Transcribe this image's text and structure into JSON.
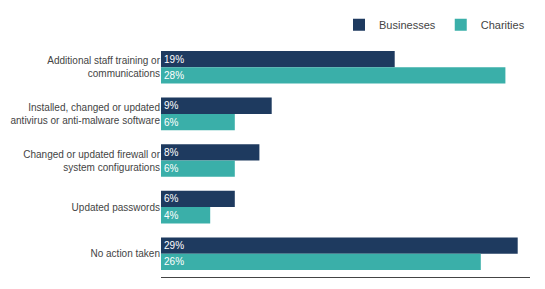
{
  "chart_data": {
    "type": "bar",
    "orientation": "horizontal",
    "categories": [
      "Additional staff training or\ncommunications",
      "Installed, changed or updated\nantivirus or anti-malware software",
      "Changed or updated firewall or\nsystem configurations",
      "Updated passwords",
      "No action taken"
    ],
    "series": [
      {
        "name": "Businesses",
        "color": "#1e3a5f",
        "values": [
          19,
          9,
          8,
          6,
          29
        ],
        "value_labels": [
          "19%",
          "9%",
          "8%",
          "6%",
          "29%"
        ]
      },
      {
        "name": "Charities",
        "color": "#3aafa9",
        "values": [
          28,
          6,
          6,
          4,
          26
        ],
        "value_labels": [
          "28%",
          "6%",
          "6%",
          "4%",
          "26%"
        ]
      }
    ],
    "xlim": [
      0,
      30
    ],
    "data_labels": true,
    "tick_labels": "y",
    "grid": false,
    "legend": "upper right"
  }
}
